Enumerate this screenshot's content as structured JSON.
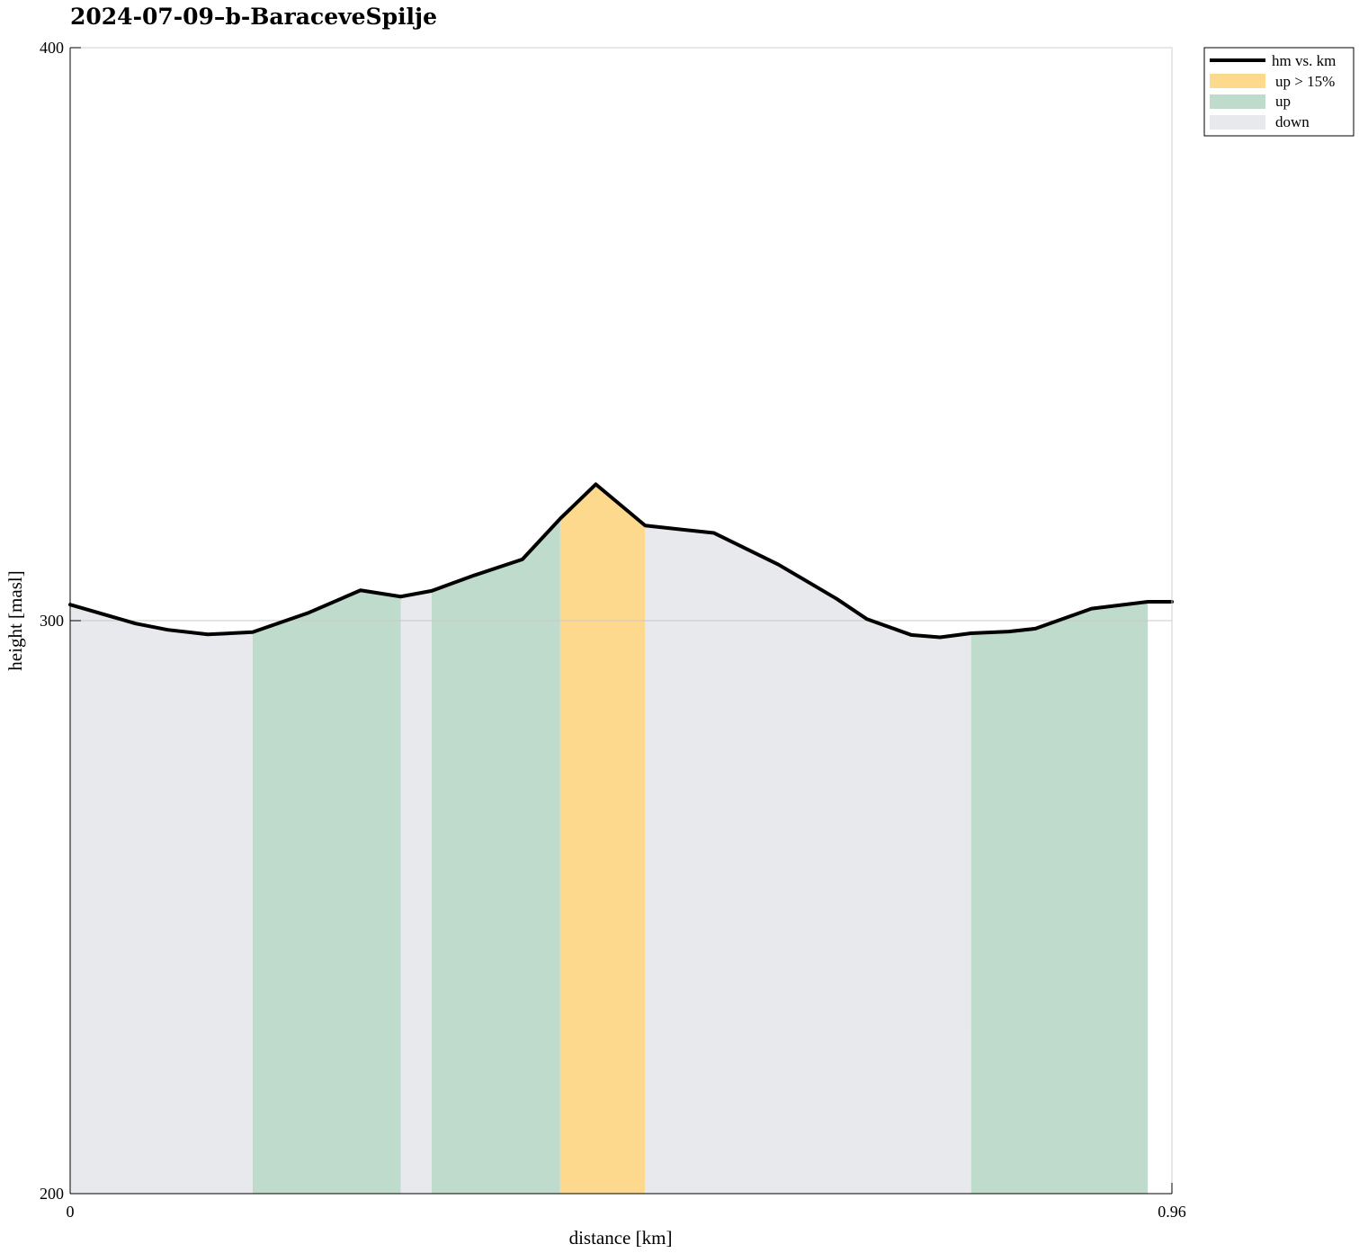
{
  "chart_data": {
    "type": "area",
    "title": "2024-07-09–b-BaraceveSpilje",
    "xlabel": "distance [km]",
    "ylabel": "height [masl]",
    "xlim": [
      0,
      0.96
    ],
    "ylim": [
      200,
      400
    ],
    "x_ticks": [
      "0",
      "0.96"
    ],
    "y_ticks": [
      "200",
      "300",
      "400"
    ],
    "grid": "horizontal line at 300",
    "legend_position": "top-right, outside plot",
    "legend": [
      "hm vs. km",
      "up > 15%",
      "up",
      "down"
    ],
    "colors": {
      "line": "#000000",
      "steep_up": "#fcd98c",
      "up": "#bfdbcb",
      "down": "#e8e9ed"
    },
    "series": [
      {
        "name": "hm vs. km",
        "x": [
          0,
          0.057,
          0.085,
          0.12,
          0.159,
          0.208,
          0.253,
          0.288,
          0.315,
          0.352,
          0.394,
          0.427,
          0.458,
          0.501,
          0.561,
          0.617,
          0.668,
          0.694,
          0.733,
          0.758,
          0.785,
          0.818,
          0.841,
          0.89,
          0.939,
          0.96
        ],
        "y": [
          302.8,
          299.5,
          298.4,
          297.6,
          298,
          301.4,
          305.3,
          304.2,
          305.2,
          307.9,
          310.7,
          317.8,
          323.8,
          316.6,
          315.3,
          309.8,
          303.8,
          300.3,
          297.5,
          297.1,
          297.8,
          298.1,
          298.6,
          302.1,
          303.3,
          303.3
        ]
      }
    ],
    "segments": [
      {
        "from": 0,
        "to": 0.159,
        "class": "down"
      },
      {
        "from": 0.159,
        "to": 0.288,
        "class": "up"
      },
      {
        "from": 0.288,
        "to": 0.315,
        "class": "down"
      },
      {
        "from": 0.315,
        "to": 0.427,
        "class": "up"
      },
      {
        "from": 0.427,
        "to": 0.501,
        "class": "up > 15%"
      },
      {
        "from": 0.501,
        "to": 0.785,
        "class": "down"
      },
      {
        "from": 0.785,
        "to": 0.939,
        "class": "up"
      },
      {
        "from": 0.939,
        "to": 0.96,
        "class": "none"
      }
    ]
  }
}
